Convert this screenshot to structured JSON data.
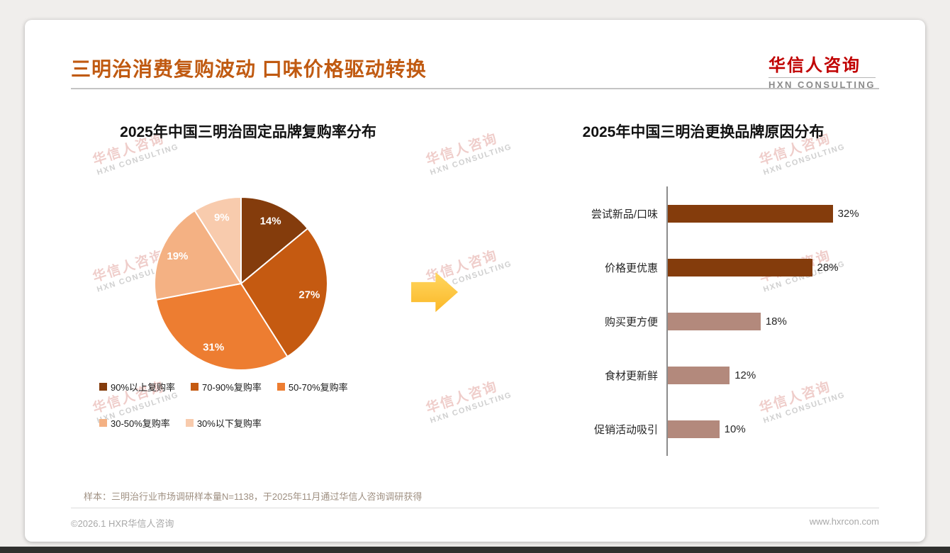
{
  "header": {
    "title": "三明治消费复购波动 口味价格驱动转换",
    "logo_cn": "华信人咨询",
    "logo_en": "HXN CONSULTING"
  },
  "watermark": {
    "line1": "华信人咨询",
    "line2": "HXN CONSULTING"
  },
  "chart_data": [
    {
      "type": "pie",
      "title": "2025年中国三明治固定品牌复购率分布",
      "labels": [
        "90%以上复购率",
        "70-90%复购率",
        "50-70%复购率",
        "30-50%复购率",
        "30%以下复购率"
      ],
      "values": [
        14,
        27,
        31,
        19,
        9
      ],
      "value_labels": [
        "14%",
        "27%",
        "31%",
        "19%",
        "9%"
      ],
      "colors": [
        "#843C0C",
        "#C55A11",
        "#ED7D31",
        "#F4B183",
        "#F8CBAD"
      ],
      "start_angle_deg": 0,
      "direction": "clockwise",
      "legend_position": "bottom"
    },
    {
      "type": "bar",
      "orientation": "horizontal",
      "title": "2025年中国三明治更换品牌原因分布",
      "categories": [
        "尝试新品/口味",
        "价格更优惠",
        "购买更方便",
        "食材更新鲜",
        "促销活动吸引"
      ],
      "values": [
        32,
        28,
        18,
        12,
        10
      ],
      "value_labels": [
        "32%",
        "28%",
        "18%",
        "12%",
        "10%"
      ],
      "colors": [
        "#843C0C",
        "#843C0C",
        "#B3897C",
        "#B3897C",
        "#B3897C"
      ],
      "xlim": [
        0,
        35
      ],
      "grid": false
    }
  ],
  "footnote": "样本：三明治行业市场调研样本量N=1138，于2025年11月通过华信人咨询调研获得",
  "footer": {
    "left": "©2026.1 HXR华信人咨询",
    "right": "www.hxrcon.com"
  }
}
